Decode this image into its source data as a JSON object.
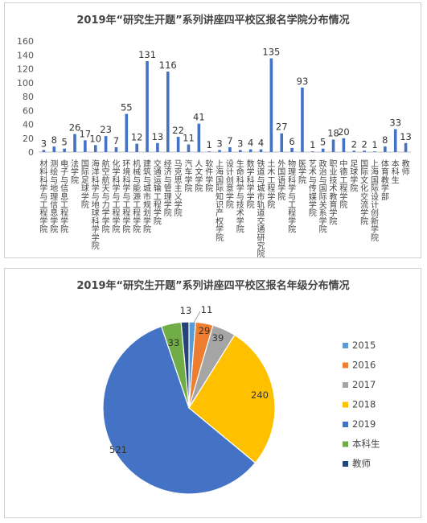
{
  "chart_data": [
    {
      "type": "bar",
      "title": "2019年“研究生开题”系列讲座四平校区报名学院分布情况",
      "ylim": [
        0,
        160
      ],
      "yticks": [
        0,
        20,
        40,
        60,
        80,
        100,
        120,
        140,
        160
      ],
      "grid": false,
      "color": "#4472c4",
      "categories": [
        "材料科学与工程学院",
        "测绘与地理信息学院",
        "电子与信息工程学院",
        "法学院",
        "国际足球学院",
        "海洋科学与地球科学学院",
        "航空航天与力学学院",
        "化学科学与工程学院",
        "环境科学与工程学院",
        "机械与能源工程学院",
        "建筑与城市规划学院",
        "交通运输工程学院",
        "经济与管理学院",
        "马克思主义学院",
        "汽车学院",
        "人文学院",
        "软件学院",
        "上海国际知识产权学院",
        "设计创意学院",
        "生命科学与技术学院",
        "数学科学学院",
        "铁道与城市轨道交通研究院",
        "土木工程学院",
        "外国语学院",
        "物理科学与工程学院",
        "医学院",
        "艺术与传媒学院",
        "政治与国际关系学院",
        "职业技术教育学院",
        "中德工程学院",
        "足球学院",
        "国际文化交流学院",
        "上海国际设计创新学院",
        "体育教学部",
        "本科生",
        "教师"
      ],
      "values": [
        3,
        8,
        5,
        26,
        17,
        10,
        23,
        7,
        55,
        12,
        131,
        13,
        116,
        22,
        11,
        41,
        1,
        3,
        7,
        3,
        4,
        4,
        135,
        27,
        6,
        93,
        1,
        5,
        18,
        20,
        2,
        2,
        1,
        8,
        33,
        13
      ]
    },
    {
      "type": "pie",
      "title": "2019年“研究生开题”系列讲座四平校区报名年级分布情况",
      "legend": "right",
      "slices": [
        {
          "label": "2015",
          "value": 11,
          "color": "#5b9bd5"
        },
        {
          "label": "2016",
          "value": 29,
          "color": "#ed7d31"
        },
        {
          "label": "2017",
          "value": 39,
          "color": "#a5a5a5"
        },
        {
          "label": "2018",
          "value": 240,
          "color": "#ffc000"
        },
        {
          "label": "2019",
          "value": 521,
          "color": "#4472c4"
        },
        {
          "label": "本科生",
          "value": 33,
          "color": "#70ad47"
        },
        {
          "label": "教师",
          "value": 13,
          "color": "#264478"
        }
      ]
    }
  ]
}
